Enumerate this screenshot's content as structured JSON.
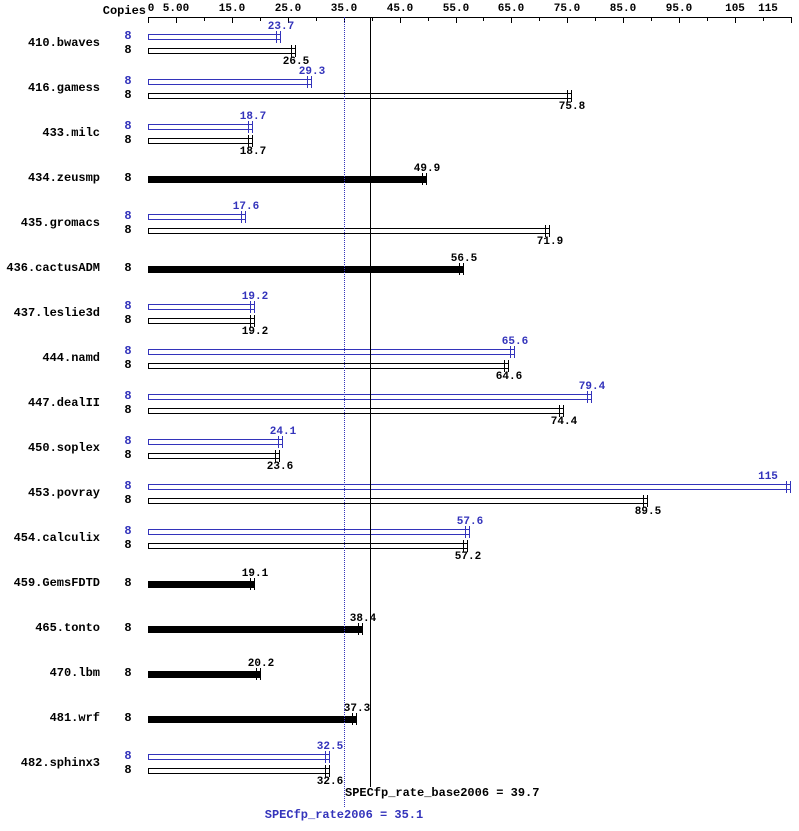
{
  "chart_data": {
    "type": "bar",
    "orientation": "horizontal",
    "copies_header": "Copies",
    "xlim": [
      0,
      115
    ],
    "x_ticks": [
      {
        "value": 0,
        "label": "0"
      },
      {
        "value": 5,
        "label": "5.00"
      },
      {
        "value": 15,
        "label": "15.0"
      },
      {
        "value": 25,
        "label": "25.0"
      },
      {
        "value": 35,
        "label": "35.0"
      },
      {
        "value": 45,
        "label": "45.0"
      },
      {
        "value": 55,
        "label": "55.0"
      },
      {
        "value": 65,
        "label": "65.0"
      },
      {
        "value": 75,
        "label": "75.0"
      },
      {
        "value": 85,
        "label": "85.0"
      },
      {
        "value": 95,
        "label": "95.0"
      },
      {
        "value": 105,
        "label": "105"
      },
      {
        "value": 115,
        "label": "115"
      }
    ],
    "colors": {
      "peak": "#3333bb",
      "base": "#000000"
    },
    "benchmarks": [
      {
        "name": "410.bwaves",
        "bars": [
          {
            "kind": "peak",
            "copies": "8",
            "value": 23.7,
            "display": "23.7",
            "label_pos": "above"
          },
          {
            "kind": "base",
            "copies": "8",
            "value": 26.5,
            "display": "26.5",
            "label_pos": "below"
          }
        ]
      },
      {
        "name": "416.gamess",
        "bars": [
          {
            "kind": "peak",
            "copies": "8",
            "value": 29.3,
            "display": "29.3",
            "label_pos": "above"
          },
          {
            "kind": "base",
            "copies": "8",
            "value": 75.8,
            "display": "75.8",
            "label_pos": "below"
          }
        ]
      },
      {
        "name": "433.milc",
        "bars": [
          {
            "kind": "peak",
            "copies": "8",
            "value": 18.7,
            "display": "18.7",
            "label_pos": "above"
          },
          {
            "kind": "base",
            "copies": "8",
            "value": 18.7,
            "display": "18.7",
            "label_pos": "below"
          }
        ]
      },
      {
        "name": "434.zeusmp",
        "bars": [
          {
            "kind": "base-bold",
            "copies": "8",
            "value": 49.9,
            "display": "49.9",
            "label_pos": "above"
          }
        ]
      },
      {
        "name": "435.gromacs",
        "bars": [
          {
            "kind": "peak",
            "copies": "8",
            "value": 17.6,
            "display": "17.6",
            "label_pos": "above"
          },
          {
            "kind": "base",
            "copies": "8",
            "value": 71.9,
            "display": "71.9",
            "label_pos": "below"
          }
        ]
      },
      {
        "name": "436.cactusADM",
        "bars": [
          {
            "kind": "base-bold",
            "copies": "8",
            "value": 56.5,
            "display": "56.5",
            "label_pos": "above"
          }
        ]
      },
      {
        "name": "437.leslie3d",
        "bars": [
          {
            "kind": "peak",
            "copies": "8",
            "value": 19.2,
            "display": "19.2",
            "label_pos": "above"
          },
          {
            "kind": "base",
            "copies": "8",
            "value": 19.2,
            "display": "19.2",
            "label_pos": "below"
          }
        ]
      },
      {
        "name": "444.namd",
        "bars": [
          {
            "kind": "peak",
            "copies": "8",
            "value": 65.6,
            "display": "65.6",
            "label_pos": "above"
          },
          {
            "kind": "base",
            "copies": "8",
            "value": 64.6,
            "display": "64.6",
            "label_pos": "below"
          }
        ]
      },
      {
        "name": "447.dealII",
        "bars": [
          {
            "kind": "peak",
            "copies": "8",
            "value": 79.4,
            "display": "79.4",
            "label_pos": "above"
          },
          {
            "kind": "base",
            "copies": "8",
            "value": 74.4,
            "display": "74.4",
            "label_pos": "below"
          }
        ]
      },
      {
        "name": "450.soplex",
        "bars": [
          {
            "kind": "peak",
            "copies": "8",
            "value": 24.1,
            "display": "24.1",
            "label_pos": "above"
          },
          {
            "kind": "base",
            "copies": "8",
            "value": 23.6,
            "display": "23.6",
            "label_pos": "below"
          }
        ]
      },
      {
        "name": "453.povray",
        "bars": [
          {
            "kind": "peak",
            "copies": "8",
            "value": 115,
            "display": "115",
            "label_pos": "above"
          },
          {
            "kind": "base",
            "copies": "8",
            "value": 89.5,
            "display": "89.5",
            "label_pos": "below"
          }
        ]
      },
      {
        "name": "454.calculix",
        "bars": [
          {
            "kind": "peak",
            "copies": "8",
            "value": 57.6,
            "display": "57.6",
            "label_pos": "above"
          },
          {
            "kind": "base",
            "copies": "8",
            "value": 57.2,
            "display": "57.2",
            "label_pos": "below"
          }
        ]
      },
      {
        "name": "459.GemsFDTD",
        "bars": [
          {
            "kind": "base-bold",
            "copies": "8",
            "value": 19.1,
            "display": "19.1",
            "label_pos": "above"
          }
        ]
      },
      {
        "name": "465.tonto",
        "bars": [
          {
            "kind": "base-bold",
            "copies": "8",
            "value": 38.4,
            "display": "38.4",
            "label_pos": "above"
          }
        ]
      },
      {
        "name": "470.lbm",
        "bars": [
          {
            "kind": "base-bold",
            "copies": "8",
            "value": 20.2,
            "display": "20.2",
            "label_pos": "above"
          }
        ]
      },
      {
        "name": "481.wrf",
        "bars": [
          {
            "kind": "base-bold",
            "copies": "8",
            "value": 37.3,
            "display": "37.3",
            "label_pos": "above"
          }
        ]
      },
      {
        "name": "482.sphinx3",
        "bars": [
          {
            "kind": "peak",
            "copies": "8",
            "value": 32.5,
            "display": "32.5",
            "label_pos": "above"
          },
          {
            "kind": "base",
            "copies": "8",
            "value": 32.6,
            "display": "32.6",
            "label_pos": "below"
          }
        ]
      }
    ],
    "reference_lines": [
      {
        "name": "base_mean",
        "label": "SPECfp_rate_base2006 = 39.7",
        "value": 39.7,
        "style": "solid",
        "color": "#000000"
      },
      {
        "name": "peak_mean",
        "label": "SPECfp_rate2006 = 35.1",
        "value": 35.1,
        "style": "dotted",
        "color": "#3333bb"
      }
    ]
  }
}
